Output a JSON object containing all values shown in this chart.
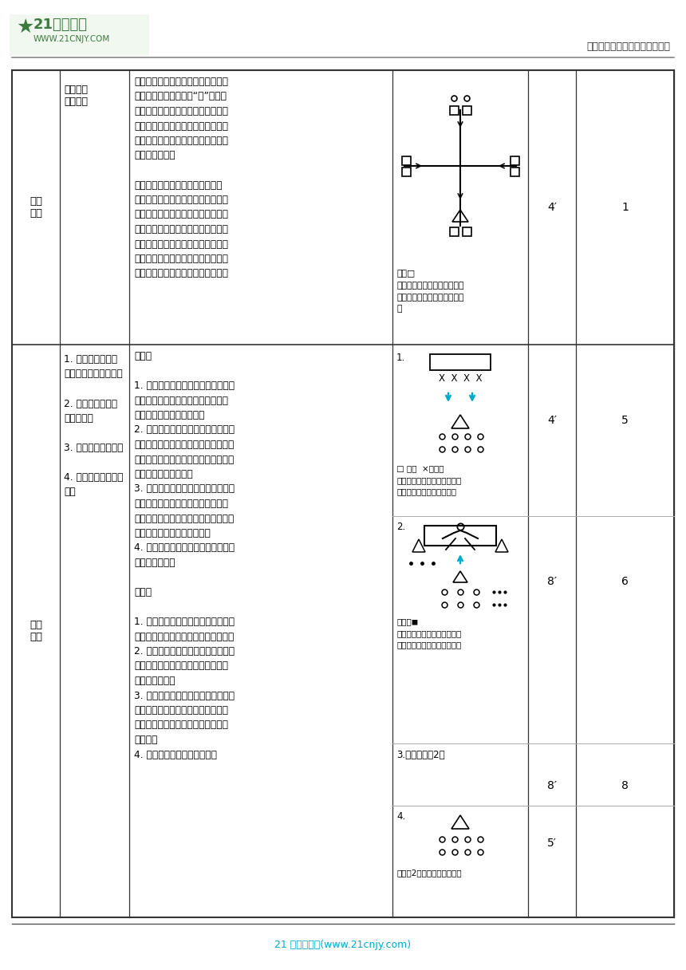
{
  "fig_width": 8.6,
  "fig_height": 12.16,
  "dpi": 100,
  "bg_color": "#ffffff",
  "header_logo_text": "21世纪教育",
  "header_logo_url": "WWW.21CNJY.COM",
  "header_right_text": "中小学教育资源及组卷应用平台",
  "footer_text": "21 世纪教育网(www.21cnjy.com)",
  "border_color": "#000000",
  "row1_label": "增趣\n促学",
  "row1_sub": "小游戏：\n过关斩将",
  "row1_time": "4′",
  "row1_intensity": "1",
  "row2_label": "素养\n提升",
  "row2_time1": "4′",
  "row2_intensity1": "5",
  "row2_time2": "8′",
  "row2_intensity2": "6",
  "row2_time3": "8′",
  "row2_intensity3": "8",
  "row2_time4": "5′",
  "logo_green": "#3d7a3d",
  "cyan_color": "#00aacc"
}
